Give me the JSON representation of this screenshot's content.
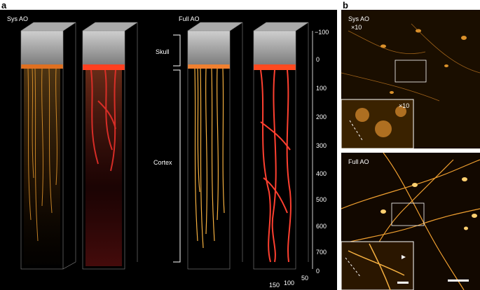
{
  "panel_a": {
    "letter": "a",
    "sys_label": "Sys  AO",
    "full_label": "Full  AO",
    "skull_label": "Skull",
    "cortex_label": "Cortex",
    "depth_ticks": [
      "−100",
      "0",
      "100",
      "200",
      "300",
      "400",
      "500",
      "600",
      "700"
    ],
    "bottom_ticks": [
      "0",
      "50",
      "100",
      "150"
    ]
  },
  "panel_b": {
    "letter": "b",
    "sys_label": "Sys  AO",
    "sys_zoom": "×10",
    "inset_zoom": "×10",
    "full_label": "Full  AO"
  },
  "colors": {
    "background": "#000000",
    "skull": "#9a9a9a",
    "neuron": "#f0a030",
    "vessel": "#e02a20"
  }
}
